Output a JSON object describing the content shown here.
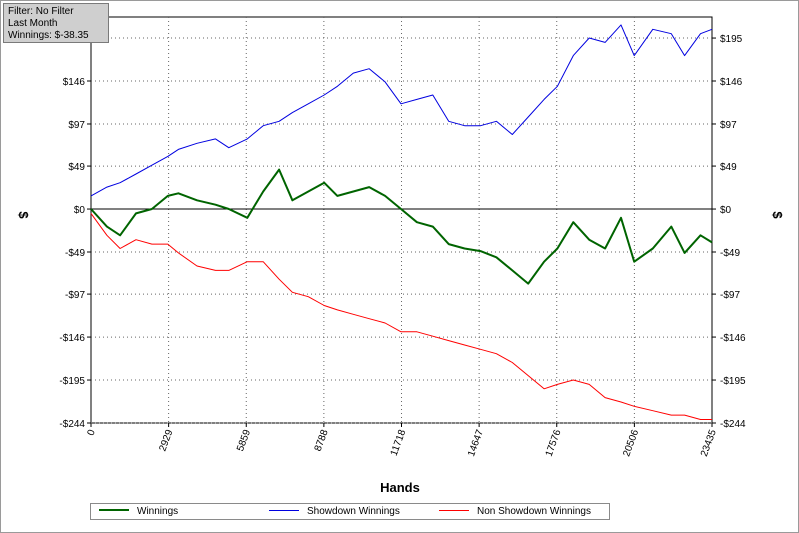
{
  "filter_box": {
    "line1": "Filter: No Filter",
    "line2": "Last Month",
    "line3": "Winnings: $-38.35"
  },
  "colors": {
    "winnings": "#006400",
    "showdown": "#0000e0",
    "non_showdown": "#ff0000",
    "grid": "#666666"
  },
  "chart_data": {
    "type": "line",
    "title": "",
    "xlabel": "Hands",
    "ylabel_left": "$",
    "ylabel_right": "$",
    "xlim": [
      0,
      23435
    ],
    "ylim": [
      -244,
      219
    ],
    "x_ticks": [
      0,
      2929,
      5859,
      8788,
      11718,
      14647,
      17576,
      20506,
      23435
    ],
    "y_ticks": [
      {
        "value": 195,
        "label": "$195"
      },
      {
        "value": 146,
        "label": "$146"
      },
      {
        "value": 97,
        "label": "$97"
      },
      {
        "value": 49,
        "label": "$49"
      },
      {
        "value": 0,
        "label": "$0"
      },
      {
        "value": -49,
        "label": "-$49"
      },
      {
        "value": -97,
        "label": "-$97"
      },
      {
        "value": -146,
        "label": "-$146"
      },
      {
        "value": -195,
        "label": "-$195"
      },
      {
        "value": -244,
        "label": "-$244"
      }
    ],
    "grid": true,
    "legend_position": "bottom",
    "series": [
      {
        "name": "Winnings",
        "color": "#006400",
        "x": [
          0,
          600,
          1100,
          1700,
          2300,
          2900,
          3300,
          4000,
          4700,
          5200,
          5900,
          6500,
          7100,
          7600,
          8200,
          8800,
          9300,
          9900,
          10500,
          11100,
          11700,
          12300,
          12900,
          13500,
          14100,
          14700,
          15300,
          15900,
          16500,
          17100,
          17600,
          18200,
          18800,
          19400,
          20000,
          20500,
          21200,
          21900,
          22400,
          23000,
          23435
        ],
        "y": [
          0,
          -20,
          -30,
          -5,
          0,
          15,
          18,
          10,
          5,
          0,
          -10,
          20,
          45,
          10,
          20,
          30,
          15,
          20,
          25,
          15,
          0,
          -15,
          -20,
          -40,
          -45,
          -48,
          -55,
          -70,
          -85,
          -60,
          -45,
          -15,
          -35,
          -45,
          -10,
          -60,
          -45,
          -20,
          -50,
          -30,
          -38
        ]
      },
      {
        "name": "Showdown Winnings",
        "color": "#0000e0",
        "x": [
          0,
          600,
          1100,
          1700,
          2300,
          2900,
          3300,
          4000,
          4700,
          5200,
          5900,
          6500,
          7100,
          7600,
          8200,
          8800,
          9300,
          9900,
          10500,
          11100,
          11700,
          12300,
          12900,
          13500,
          14100,
          14700,
          15300,
          15900,
          16500,
          17100,
          17600,
          18200,
          18800,
          19400,
          20000,
          20500,
          21200,
          21900,
          22400,
          23000,
          23435
        ],
        "y": [
          15,
          25,
          30,
          40,
          50,
          60,
          68,
          75,
          80,
          70,
          80,
          95,
          100,
          110,
          120,
          130,
          140,
          155,
          160,
          145,
          120,
          125,
          130,
          100,
          95,
          95,
          100,
          85,
          105,
          125,
          140,
          175,
          195,
          190,
          210,
          175,
          205,
          200,
          175,
          200,
          205
        ]
      },
      {
        "name": "Non Showdown Winnings",
        "color": "#ff0000",
        "x": [
          0,
          600,
          1100,
          1700,
          2300,
          2900,
          3300,
          4000,
          4700,
          5200,
          5900,
          6500,
          7100,
          7600,
          8200,
          8800,
          9300,
          9900,
          10500,
          11100,
          11700,
          12300,
          12900,
          13500,
          14100,
          14700,
          15300,
          15900,
          16500,
          17100,
          17600,
          18200,
          18800,
          19400,
          20000,
          20500,
          21200,
          21900,
          22400,
          23000,
          23435
        ],
        "y": [
          -5,
          -30,
          -45,
          -35,
          -40,
          -40,
          -50,
          -65,
          -70,
          -70,
          -60,
          -60,
          -80,
          -95,
          -100,
          -110,
          -115,
          -120,
          -125,
          -130,
          -140,
          -140,
          -145,
          -150,
          -155,
          -160,
          -165,
          -175,
          -190,
          -205,
          -200,
          -195,
          -200,
          -215,
          -220,
          -225,
          -230,
          -235,
          -235,
          -240,
          -240
        ]
      }
    ]
  }
}
